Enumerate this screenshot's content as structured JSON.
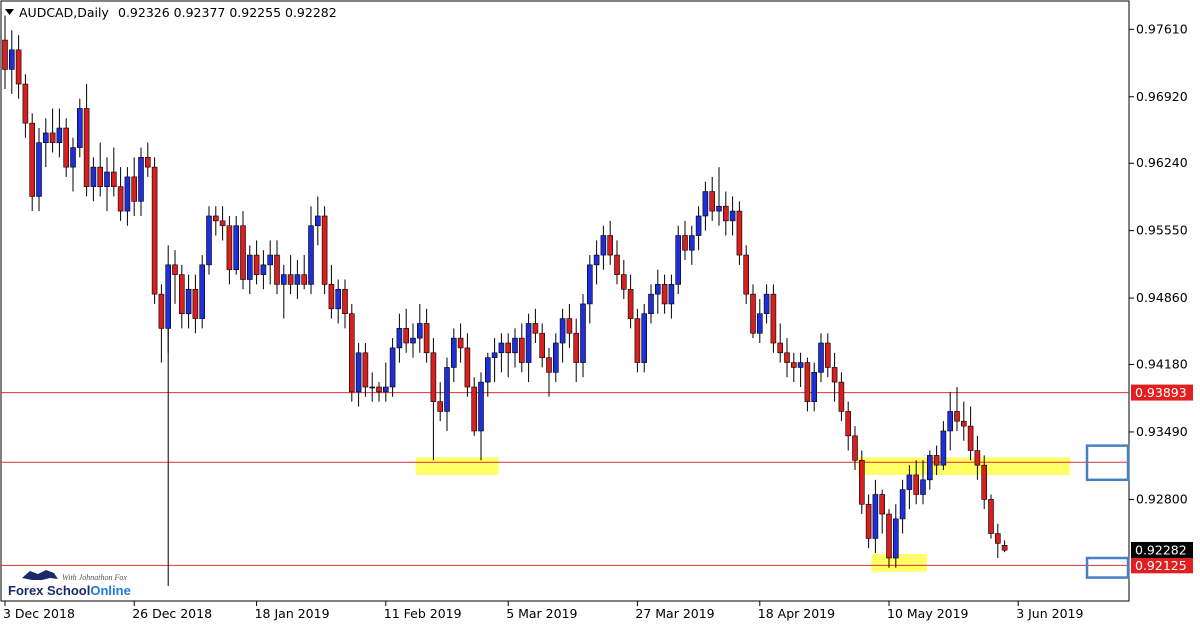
{
  "header": {
    "symbol": "AUDCAD,Daily",
    "ohlc": "0.92326 0.92377 0.92255 0.92282"
  },
  "logo": {
    "name_part1": "Forex School",
    "name_part2": "Online",
    "tagline": "With Johnathon Fox"
  },
  "colors": {
    "bull": "#1f2fd8",
    "bear": "#d81f1f",
    "wick": "#000000",
    "level_line": "#e03030",
    "zone_fill": "#ffff66",
    "marker_box": "#4a7fc0",
    "current_price_tag": "#000000",
    "level_tag": "#e02020"
  },
  "chart_data": {
    "type": "candlestick",
    "title": "AUDCAD,Daily",
    "ylim": [
      0.9176,
      0.979
    ],
    "y_ticks": [
      "0.97610",
      "0.96920",
      "0.96240",
      "0.95550",
      "0.94860",
      "0.94180",
      "0.93490",
      "0.92800"
    ],
    "x_ticks": [
      "3 Dec 2018",
      "26 Dec 2018",
      "18 Jan 2019",
      "11 Feb 2019",
      "5 Mar 2019",
      "27 Mar 2019",
      "18 Apr 2019",
      "10 May 2019",
      "3 Jun 2019"
    ],
    "x_tick_bar_index": [
      0,
      19,
      37,
      56,
      74,
      93,
      111,
      130,
      149
    ],
    "candles": [
      [
        0.975,
        0.9775,
        0.97,
        0.972
      ],
      [
        0.972,
        0.976,
        0.9695,
        0.974
      ],
      [
        0.974,
        0.9755,
        0.969,
        0.9705
      ],
      [
        0.9705,
        0.9715,
        0.965,
        0.9665
      ],
      [
        0.9665,
        0.9675,
        0.9575,
        0.959
      ],
      [
        0.959,
        0.966,
        0.9575,
        0.9645
      ],
      [
        0.9645,
        0.967,
        0.962,
        0.9655
      ],
      [
        0.9655,
        0.968,
        0.9635,
        0.9645
      ],
      [
        0.9645,
        0.968,
        0.963,
        0.966
      ],
      [
        0.966,
        0.967,
        0.961,
        0.962
      ],
      [
        0.962,
        0.965,
        0.9595,
        0.964
      ],
      [
        0.964,
        0.969,
        0.963,
        0.968
      ],
      [
        0.968,
        0.9705,
        0.959,
        0.96
      ],
      [
        0.96,
        0.963,
        0.9585,
        0.962
      ],
      [
        0.962,
        0.9645,
        0.959,
        0.96
      ],
      [
        0.96,
        0.963,
        0.9575,
        0.9615
      ],
      [
        0.9615,
        0.964,
        0.959,
        0.96
      ],
      [
        0.96,
        0.962,
        0.9565,
        0.9575
      ],
      [
        0.9575,
        0.962,
        0.956,
        0.961
      ],
      [
        0.961,
        0.963,
        0.957,
        0.9585
      ],
      [
        0.9585,
        0.964,
        0.957,
        0.963
      ],
      [
        0.963,
        0.9645,
        0.961,
        0.962
      ],
      [
        0.962,
        0.963,
        0.948,
        0.949
      ],
      [
        0.949,
        0.95,
        0.942,
        0.9455
      ],
      [
        0.9455,
        0.954,
        0.943,
        0.952
      ],
      [
        0.952,
        0.9535,
        0.948,
        0.951
      ],
      [
        0.951,
        0.952,
        0.9455,
        0.947
      ],
      [
        0.947,
        0.951,
        0.9455,
        0.9495
      ],
      [
        0.9495,
        0.951,
        0.945,
        0.9465
      ],
      [
        0.9465,
        0.953,
        0.9455,
        0.952
      ],
      [
        0.952,
        0.958,
        0.951,
        0.957
      ],
      [
        0.957,
        0.958,
        0.955,
        0.9565
      ],
      [
        0.9565,
        0.958,
        0.9545,
        0.956
      ],
      [
        0.956,
        0.957,
        0.95,
        0.9515
      ],
      [
        0.9515,
        0.957,
        0.951,
        0.956
      ],
      [
        0.956,
        0.9575,
        0.9495,
        0.9505
      ],
      [
        0.9505,
        0.954,
        0.949,
        0.953
      ],
      [
        0.953,
        0.9545,
        0.95,
        0.951
      ],
      [
        0.951,
        0.9535,
        0.9495,
        0.952
      ],
      [
        0.952,
        0.9545,
        0.95,
        0.953
      ],
      [
        0.953,
        0.9545,
        0.949,
        0.95
      ],
      [
        0.95,
        0.952,
        0.9465,
        0.951
      ],
      [
        0.951,
        0.953,
        0.949,
        0.95
      ],
      [
        0.95,
        0.9525,
        0.9485,
        0.951
      ],
      [
        0.951,
        0.953,
        0.9495,
        0.95
      ],
      [
        0.95,
        0.958,
        0.949,
        0.956
      ],
      [
        0.956,
        0.959,
        0.954,
        0.957
      ],
      [
        0.957,
        0.958,
        0.949,
        0.95
      ],
      [
        0.95,
        0.952,
        0.9465,
        0.9475
      ],
      [
        0.9475,
        0.9505,
        0.946,
        0.9495
      ],
      [
        0.9495,
        0.9505,
        0.9455,
        0.947
      ],
      [
        0.947,
        0.948,
        0.938,
        0.939
      ],
      [
        0.939,
        0.944,
        0.9375,
        0.943
      ],
      [
        0.943,
        0.944,
        0.9385,
        0.9395
      ],
      [
        0.9395,
        0.941,
        0.938,
        0.9395
      ],
      [
        0.9395,
        0.94,
        0.938,
        0.939
      ],
      [
        0.939,
        0.942,
        0.938,
        0.9395
      ],
      [
        0.9395,
        0.9445,
        0.9385,
        0.9435
      ],
      [
        0.9435,
        0.947,
        0.942,
        0.9455
      ],
      [
        0.9455,
        0.9475,
        0.943,
        0.944
      ],
      [
        0.944,
        0.946,
        0.9425,
        0.9445
      ],
      [
        0.9445,
        0.948,
        0.943,
        0.946
      ],
      [
        0.946,
        0.9475,
        0.942,
        0.943
      ],
      [
        0.943,
        0.9445,
        0.932,
        0.938
      ],
      [
        0.938,
        0.94,
        0.936,
        0.937
      ],
      [
        0.937,
        0.9425,
        0.935,
        0.9415
      ],
      [
        0.9415,
        0.9455,
        0.94,
        0.9445
      ],
      [
        0.9445,
        0.946,
        0.942,
        0.9435
      ],
      [
        0.9435,
        0.945,
        0.9385,
        0.9395
      ],
      [
        0.9395,
        0.9405,
        0.9345,
        0.935
      ],
      [
        0.935,
        0.941,
        0.932,
        0.94
      ],
      [
        0.94,
        0.943,
        0.9385,
        0.9425
      ],
      [
        0.9425,
        0.9445,
        0.94,
        0.943
      ],
      [
        0.943,
        0.945,
        0.941,
        0.944
      ],
      [
        0.944,
        0.945,
        0.9405,
        0.943
      ],
      [
        0.943,
        0.9455,
        0.9415,
        0.9445
      ],
      [
        0.9445,
        0.946,
        0.941,
        0.942
      ],
      [
        0.942,
        0.947,
        0.94,
        0.946
      ],
      [
        0.946,
        0.9475,
        0.944,
        0.945
      ],
      [
        0.945,
        0.946,
        0.9415,
        0.9425
      ],
      [
        0.9425,
        0.9435,
        0.9385,
        0.941
      ],
      [
        0.941,
        0.945,
        0.94,
        0.944
      ],
      [
        0.944,
        0.9475,
        0.942,
        0.9465
      ],
      [
        0.9465,
        0.948,
        0.9435,
        0.945
      ],
      [
        0.945,
        0.9465,
        0.94,
        0.942
      ],
      [
        0.942,
        0.949,
        0.9405,
        0.948
      ],
      [
        0.948,
        0.953,
        0.946,
        0.952
      ],
      [
        0.952,
        0.9545,
        0.95,
        0.953
      ],
      [
        0.953,
        0.956,
        0.9515,
        0.955
      ],
      [
        0.955,
        0.9565,
        0.952,
        0.953
      ],
      [
        0.953,
        0.9545,
        0.95,
        0.951
      ],
      [
        0.951,
        0.9525,
        0.9485,
        0.9495
      ],
      [
        0.9495,
        0.951,
        0.9455,
        0.9465
      ],
      [
        0.9465,
        0.9475,
        0.941,
        0.942
      ],
      [
        0.942,
        0.948,
        0.941,
        0.947
      ],
      [
        0.947,
        0.95,
        0.946,
        0.949
      ],
      [
        0.949,
        0.9515,
        0.947,
        0.95
      ],
      [
        0.95,
        0.951,
        0.947,
        0.948
      ],
      [
        0.948,
        0.951,
        0.9465,
        0.95
      ],
      [
        0.95,
        0.956,
        0.949,
        0.955
      ],
      [
        0.955,
        0.9565,
        0.9525,
        0.9535
      ],
      [
        0.9535,
        0.956,
        0.952,
        0.955
      ],
      [
        0.955,
        0.958,
        0.9535,
        0.957
      ],
      [
        0.957,
        0.9605,
        0.9555,
        0.9595
      ],
      [
        0.9595,
        0.961,
        0.9565,
        0.9575
      ],
      [
        0.9575,
        0.962,
        0.956,
        0.958
      ],
      [
        0.958,
        0.9595,
        0.955,
        0.9565
      ],
      [
        0.9565,
        0.959,
        0.955,
        0.9575
      ],
      [
        0.9575,
        0.9585,
        0.952,
        0.953
      ],
      [
        0.953,
        0.954,
        0.948,
        0.949
      ],
      [
        0.949,
        0.95,
        0.9445,
        0.945
      ],
      [
        0.945,
        0.9485,
        0.944,
        0.947
      ],
      [
        0.947,
        0.95,
        0.946,
        0.949
      ],
      [
        0.949,
        0.95,
        0.943,
        0.944
      ],
      [
        0.944,
        0.946,
        0.942,
        0.943
      ],
      [
        0.943,
        0.9445,
        0.9405,
        0.942
      ],
      [
        0.942,
        0.943,
        0.94,
        0.9415
      ],
      [
        0.9415,
        0.943,
        0.9395,
        0.942
      ],
      [
        0.942,
        0.9425,
        0.937,
        0.938
      ],
      [
        0.938,
        0.942,
        0.937,
        0.941
      ],
      [
        0.941,
        0.945,
        0.94,
        0.944
      ],
      [
        0.944,
        0.945,
        0.9405,
        0.9415
      ],
      [
        0.9415,
        0.943,
        0.938,
        0.94
      ],
      [
        0.94,
        0.941,
        0.936,
        0.937
      ],
      [
        0.937,
        0.938,
        0.933,
        0.9345
      ],
      [
        0.9345,
        0.9355,
        0.931,
        0.932
      ],
      [
        0.932,
        0.933,
        0.9265,
        0.9275
      ],
      [
        0.9275,
        0.9285,
        0.923,
        0.924
      ],
      [
        0.924,
        0.93,
        0.9225,
        0.9285
      ],
      [
        0.9285,
        0.929,
        0.9245,
        0.9265
      ],
      [
        0.9265,
        0.927,
        0.921,
        0.922
      ],
      [
        0.922,
        0.9275,
        0.921,
        0.926
      ],
      [
        0.926,
        0.93,
        0.9245,
        0.929
      ],
      [
        0.929,
        0.9315,
        0.927,
        0.9305
      ],
      [
        0.9305,
        0.932,
        0.9275,
        0.9285
      ],
      [
        0.9285,
        0.932,
        0.9275,
        0.93
      ],
      [
        0.93,
        0.933,
        0.929,
        0.9325
      ],
      [
        0.9325,
        0.9335,
        0.9305,
        0.9315
      ],
      [
        0.9315,
        0.936,
        0.931,
        0.935
      ],
      [
        0.935,
        0.939,
        0.933,
        0.937
      ],
      [
        0.937,
        0.9395,
        0.935,
        0.936
      ],
      [
        0.936,
        0.938,
        0.934,
        0.9355
      ],
      [
        0.9355,
        0.9375,
        0.932,
        0.933
      ],
      [
        0.933,
        0.9345,
        0.93,
        0.9315
      ],
      [
        0.9315,
        0.9325,
        0.927,
        0.928
      ],
      [
        0.928,
        0.9285,
        0.924,
        0.9245
      ],
      [
        0.9245,
        0.9255,
        0.922,
        0.9235
      ],
      [
        0.9233,
        0.9238,
        0.9226,
        0.9228
      ]
    ],
    "levels": [
      {
        "price": 0.93893,
        "label": "0.93893",
        "type": "resistance"
      },
      {
        "price": 0.9318,
        "label": "",
        "type": "zone-line"
      },
      {
        "price": 0.92125,
        "label": "0.92125",
        "type": "support"
      }
    ],
    "current_price": {
      "price": 0.92282,
      "label": "0.92282"
    },
    "zones": [
      {
        "from_bar": 61,
        "to_bar": 72,
        "price_low": 0.9305,
        "price_high": 0.9323
      },
      {
        "from_bar": 126,
        "to_bar": 156,
        "price_low": 0.9305,
        "price_high": 0.9323
      },
      {
        "from_bar": 128,
        "to_bar": 135,
        "price_low": 0.9206,
        "price_high": 0.9224
      }
    ],
    "marker_boxes": [
      {
        "at_price": 0.9318,
        "price_low": 0.93,
        "price_high": 0.9335
      },
      {
        "at_price": 0.92125,
        "price_low": 0.92,
        "price_high": 0.922
      }
    ]
  }
}
